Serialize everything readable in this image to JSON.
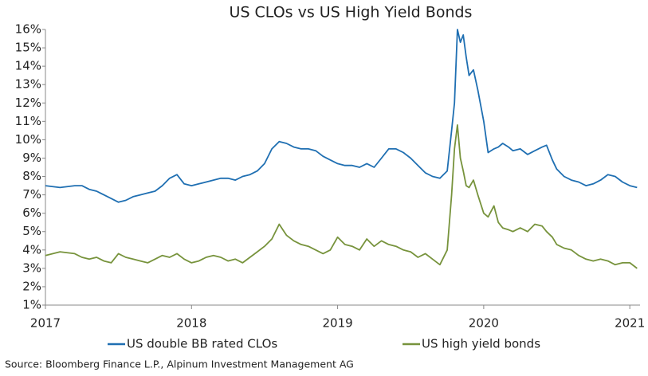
{
  "chart_data": {
    "type": "line",
    "title": "US CLOs vs US High Yield Bonds",
    "source": "Source: Bloomberg Finance L.P., Alpinum Investment Management AG",
    "x": [
      2017.0,
      2017.1,
      2017.2,
      2017.25,
      2017.3,
      2017.35,
      2017.4,
      2017.45,
      2017.5,
      2017.55,
      2017.6,
      2017.65,
      2017.7,
      2017.75,
      2017.8,
      2017.85,
      2017.9,
      2017.95,
      2018.0,
      2018.05,
      2018.1,
      2018.15,
      2018.2,
      2018.25,
      2018.3,
      2018.35,
      2018.4,
      2018.45,
      2018.5,
      2018.55,
      2018.6,
      2018.65,
      2018.7,
      2018.75,
      2018.8,
      2018.85,
      2018.9,
      2018.95,
      2019.0,
      2019.05,
      2019.1,
      2019.15,
      2019.2,
      2019.25,
      2019.3,
      2019.35,
      2019.4,
      2019.45,
      2019.5,
      2019.55,
      2019.6,
      2019.65,
      2019.7,
      2019.75,
      2019.78,
      2019.8,
      2019.82,
      2019.84,
      2019.86,
      2019.88,
      2019.9,
      2019.93,
      2019.96,
      2020.0,
      2020.03,
      2020.07,
      2020.1,
      2020.13,
      2020.17,
      2020.2,
      2020.25,
      2020.3,
      2020.35,
      2020.4,
      2020.43,
      2020.47,
      2020.5,
      2020.55,
      2020.6,
      2020.65,
      2020.7,
      2020.75,
      2020.8,
      2020.85,
      2020.9,
      2020.95,
      2021.0,
      2021.05
    ],
    "series": [
      {
        "name": "US double BB rated CLOs",
        "color": "#1f6fb2",
        "values": [
          7.5,
          7.4,
          7.5,
          7.5,
          7.3,
          7.2,
          7.0,
          6.8,
          6.6,
          6.7,
          6.9,
          7.0,
          7.1,
          7.2,
          7.5,
          7.9,
          8.1,
          7.6,
          7.5,
          7.6,
          7.7,
          7.8,
          7.9,
          7.9,
          7.8,
          8.0,
          8.1,
          8.3,
          8.7,
          9.5,
          9.9,
          9.8,
          9.6,
          9.5,
          9.5,
          9.4,
          9.1,
          8.9,
          8.7,
          8.6,
          8.6,
          8.5,
          8.7,
          8.5,
          9.0,
          9.5,
          9.5,
          9.3,
          9.0,
          8.6,
          8.2,
          8.0,
          7.9,
          8.3,
          10.5,
          12.0,
          16.0,
          15.3,
          15.7,
          14.5,
          13.5,
          13.8,
          12.7,
          11.0,
          9.3,
          9.5,
          9.6,
          9.8,
          9.6,
          9.4,
          9.5,
          9.2,
          9.4,
          9.6,
          9.7,
          8.9,
          8.4,
          8.0,
          7.8,
          7.7,
          7.5,
          7.6,
          7.8,
          8.1,
          8.0,
          7.7,
          7.5,
          7.4
        ]
      },
      {
        "name": "US high yield bonds",
        "color": "#77933c",
        "values": [
          3.7,
          3.9,
          3.8,
          3.6,
          3.5,
          3.6,
          3.4,
          3.3,
          3.8,
          3.6,
          3.5,
          3.4,
          3.3,
          3.5,
          3.7,
          3.6,
          3.8,
          3.5,
          3.3,
          3.4,
          3.6,
          3.7,
          3.6,
          3.4,
          3.5,
          3.3,
          3.6,
          3.9,
          4.2,
          4.6,
          5.4,
          4.8,
          4.5,
          4.3,
          4.2,
          4.0,
          3.8,
          4.0,
          4.7,
          4.3,
          4.2,
          4.0,
          4.6,
          4.2,
          4.5,
          4.3,
          4.2,
          4.0,
          3.9,
          3.6,
          3.8,
          3.5,
          3.2,
          4.0,
          7.0,
          9.5,
          10.8,
          9.0,
          8.3,
          7.5,
          7.4,
          7.8,
          7.0,
          6.0,
          5.8,
          6.4,
          5.5,
          5.2,
          5.1,
          5.0,
          5.2,
          5.0,
          5.4,
          5.3,
          5.0,
          4.7,
          4.3,
          4.1,
          4.0,
          3.7,
          3.5,
          3.4,
          3.5,
          3.4,
          3.2,
          3.3,
          3.3,
          3.0
        ]
      }
    ],
    "xlim": [
      2017,
      2021.07
    ],
    "xticks": [
      2017,
      2018,
      2019,
      2020,
      2021
    ],
    "ylim": [
      1,
      16
    ],
    "yticks": [
      {
        "value": 1,
        "label": "1%"
      },
      {
        "value": 2,
        "label": "2%"
      },
      {
        "value": 3,
        "label": "3%"
      },
      {
        "value": 4,
        "label": "4%"
      },
      {
        "value": 5,
        "label": "5%"
      },
      {
        "value": 6,
        "label": "6%"
      },
      {
        "value": 7,
        "label": "7%"
      },
      {
        "value": 8,
        "label": "8%"
      },
      {
        "value": 9,
        "label": "9%"
      },
      {
        "value": 10,
        "label": "10%"
      },
      {
        "value": 11,
        "label": "11%"
      },
      {
        "value": 12,
        "label": "12%"
      },
      {
        "value": 13,
        "label": "13%"
      },
      {
        "value": 14,
        "label": "14%"
      },
      {
        "value": 15,
        "label": "15%"
      },
      {
        "value": 16,
        "label": "16%"
      }
    ],
    "grid": false,
    "legend": "bottom"
  }
}
